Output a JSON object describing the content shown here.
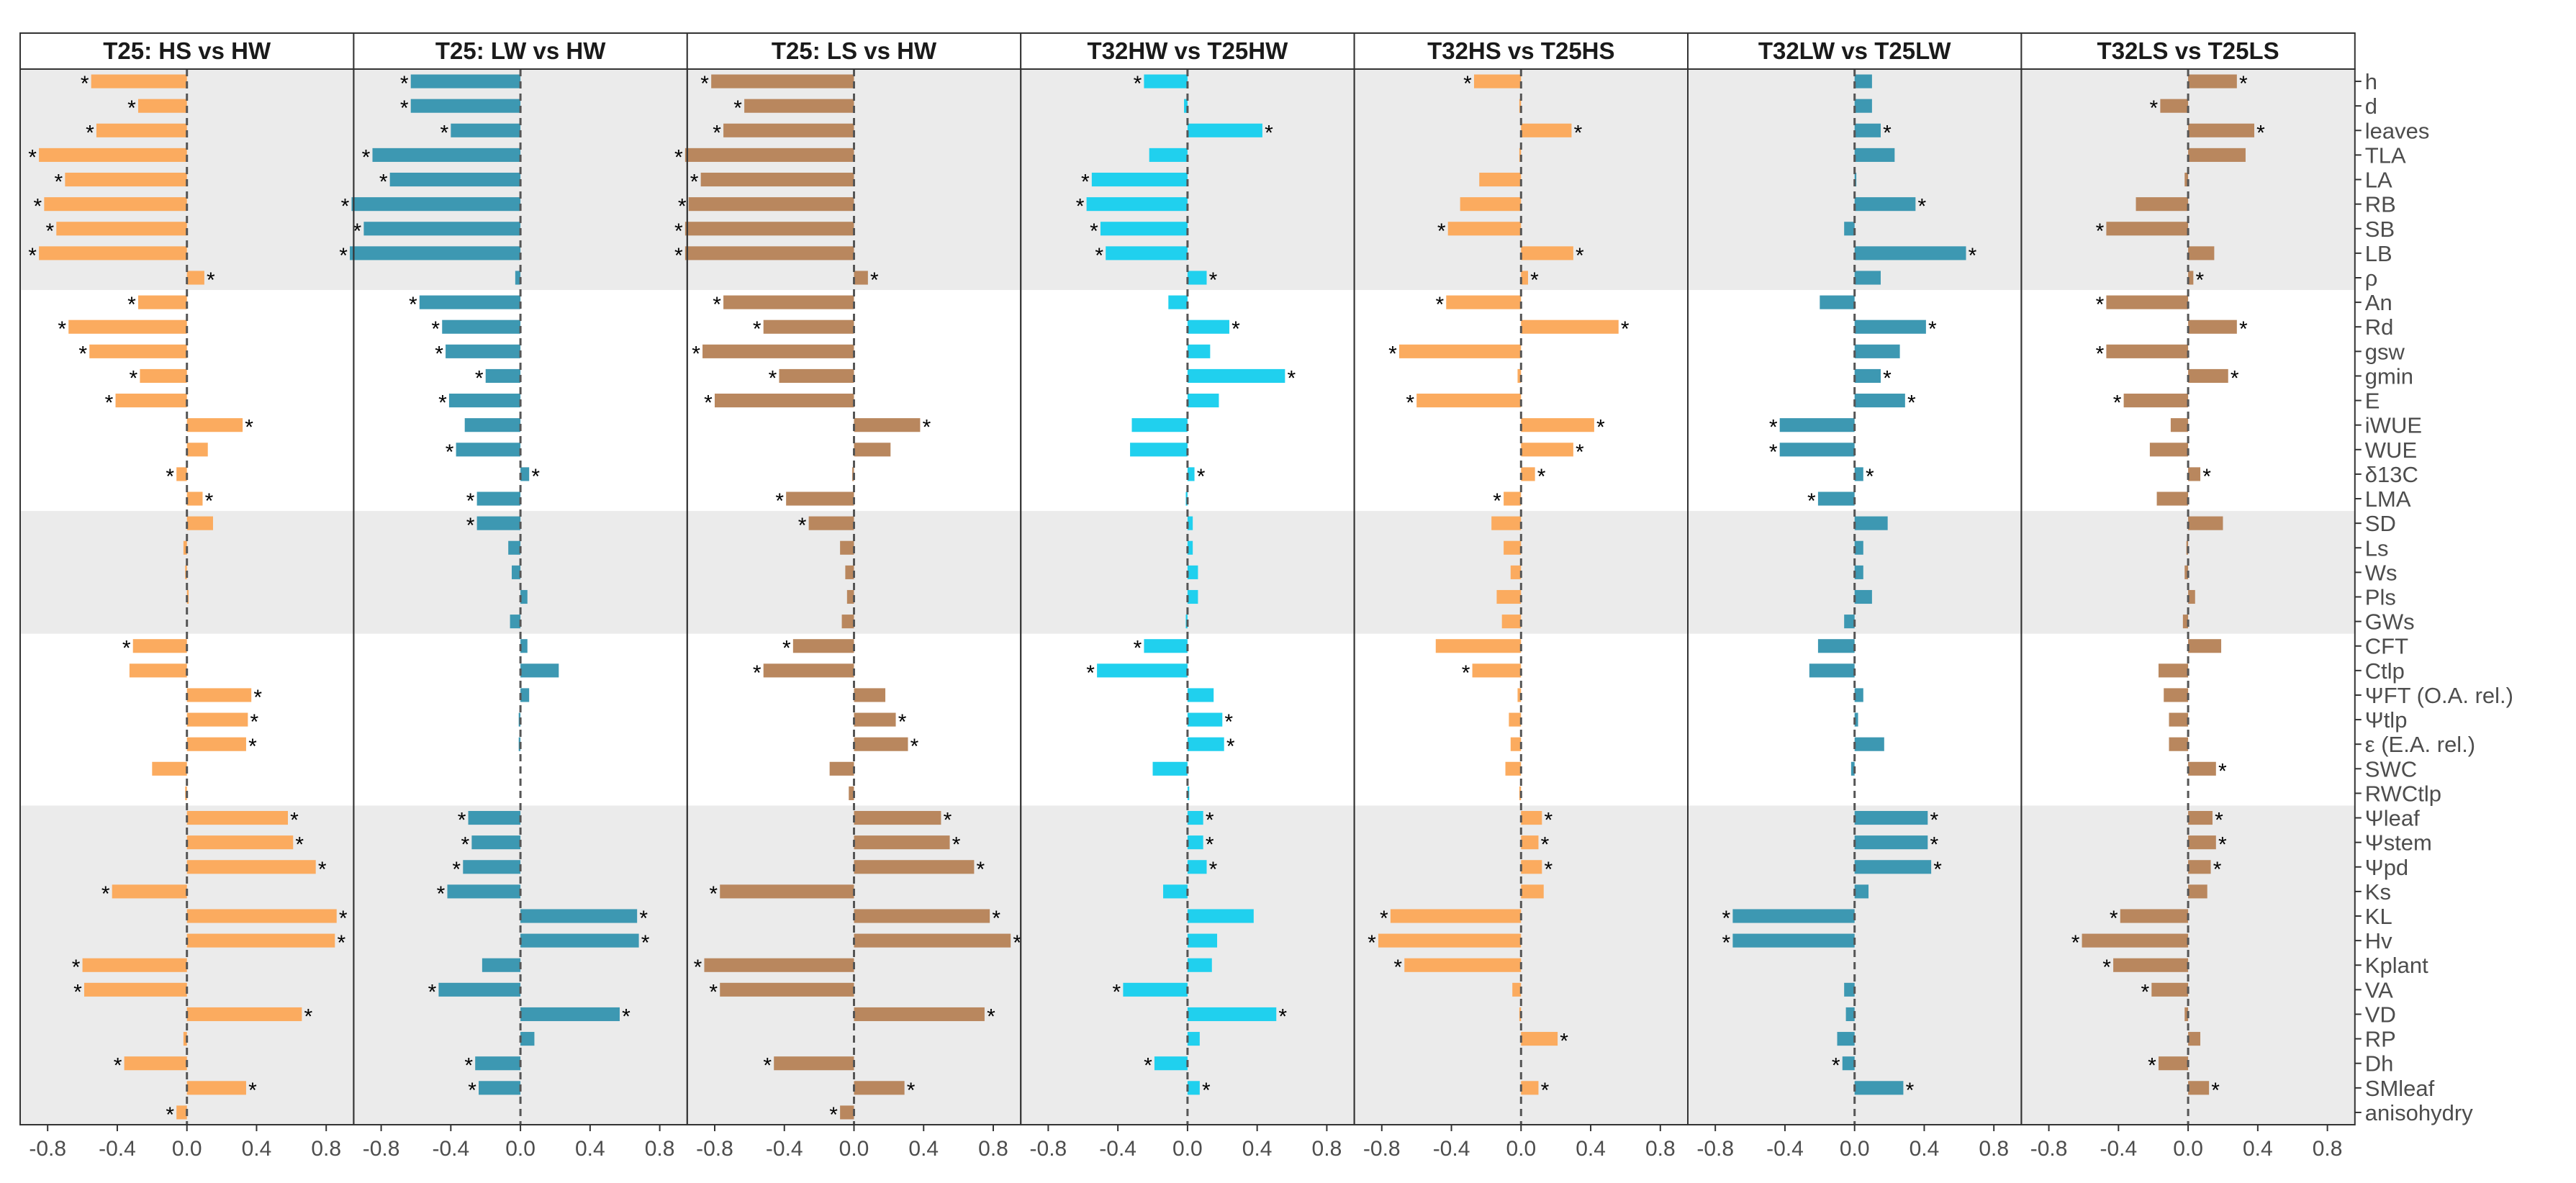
{
  "chart_data": {
    "type": "bar",
    "orientation": "horizontal",
    "facet_titles": [
      "T25: HS vs HW",
      "T25: LW vs HW",
      "T25: LS vs HW",
      "T32HW vs T25HW",
      "T32HS vs T25HS",
      "T32LW vs T25LW",
      "T32LS vs T25LS"
    ],
    "panel_colors": [
      "#fbab5f",
      "#3d98b2",
      "#b9875e",
      "#20d0ee",
      "#fbab5f",
      "#3d98b2",
      "#b9875e"
    ],
    "categories": [
      "h",
      "d",
      "leaves",
      "TLA",
      "LA",
      "RB",
      "SB",
      "LB",
      "ρ",
      "An",
      "Rd",
      "gsw",
      "gmin",
      "E",
      "iWUE",
      "WUE",
      "δ13C",
      "LMA",
      "SD",
      "Ls",
      "Ws",
      "Pls",
      "GWs",
      "CFT",
      "Ctlp",
      "ΨFT (O.A. rel.)",
      "Ψtlp",
      "ε (E.A. rel.)",
      "SWC",
      "RWCtlp",
      "Ψleaf",
      "Ψstem",
      "Ψpd",
      "Ks",
      "KL",
      "Hv",
      "Kplant",
      "VA",
      "VD",
      "RP",
      "Dh",
      "SMleaf",
      "anisohydry"
    ],
    "xlim": [
      -0.9,
      0.9
    ],
    "xticks": [
      -0.8,
      -0.4,
      0.0,
      0.4,
      0.8
    ],
    "xtick_labels": [
      "-0.8",
      "-0.4",
      "0.0",
      "0.4",
      "0.8"
    ],
    "shaded_bands": [
      [
        0,
        8
      ],
      [
        18,
        22
      ],
      [
        30,
        42
      ]
    ],
    "significance_marker": "*",
    "series": [
      {
        "name": "T25: HS vs HW",
        "values": [
          -0.55,
          -0.28,
          -0.52,
          -0.85,
          -0.7,
          -0.82,
          -0.75,
          -0.85,
          0.1,
          -0.28,
          -0.68,
          -0.56,
          -0.27,
          -0.41,
          0.32,
          0.12,
          -0.06,
          0.09,
          0.15,
          -0.02,
          -0.01,
          0.01,
          0.0,
          -0.31,
          -0.33,
          0.37,
          0.35,
          0.34,
          -0.2,
          -0.01,
          0.58,
          0.61,
          0.74,
          -0.43,
          0.86,
          0.85,
          -0.6,
          -0.59,
          0.66,
          -0.02,
          -0.36,
          0.34,
          -0.06
        ],
        "significant": [
          true,
          true,
          true,
          true,
          true,
          true,
          true,
          true,
          true,
          true,
          true,
          true,
          true,
          true,
          true,
          false,
          true,
          true,
          false,
          false,
          false,
          false,
          false,
          true,
          false,
          true,
          true,
          true,
          false,
          false,
          true,
          true,
          true,
          true,
          true,
          true,
          true,
          true,
          true,
          false,
          true,
          true,
          true
        ]
      },
      {
        "name": "T25: LW vs HW",
        "values": [
          -0.63,
          -0.63,
          -0.4,
          -0.85,
          -0.75,
          -0.97,
          -0.9,
          -0.98,
          -0.03,
          -0.58,
          -0.45,
          -0.43,
          -0.2,
          -0.41,
          -0.32,
          -0.37,
          0.05,
          -0.25,
          -0.25,
          -0.07,
          -0.05,
          0.04,
          -0.06,
          0.04,
          0.22,
          0.05,
          -0.01,
          -0.01,
          0.0,
          0.0,
          -0.3,
          -0.28,
          -0.33,
          -0.42,
          0.67,
          0.68,
          -0.22,
          -0.47,
          0.57,
          0.08,
          -0.26,
          -0.24,
          0.0
        ],
        "significant": [
          true,
          true,
          true,
          true,
          true,
          true,
          true,
          true,
          false,
          true,
          true,
          true,
          true,
          true,
          false,
          true,
          true,
          true,
          true,
          false,
          false,
          false,
          false,
          false,
          false,
          false,
          false,
          false,
          false,
          false,
          true,
          true,
          true,
          true,
          true,
          true,
          false,
          true,
          true,
          false,
          true,
          true,
          false
        ]
      },
      {
        "name": "T25: LS vs HW",
        "values": [
          -0.82,
          -0.63,
          -0.75,
          -0.97,
          -0.88,
          -0.95,
          -0.97,
          -0.97,
          0.08,
          -0.75,
          -0.52,
          -0.87,
          -0.43,
          -0.8,
          0.38,
          0.21,
          -0.01,
          -0.39,
          -0.26,
          -0.08,
          -0.05,
          -0.04,
          -0.07,
          -0.35,
          -0.52,
          0.18,
          0.24,
          0.31,
          -0.14,
          -0.03,
          0.5,
          0.55,
          0.69,
          -0.77,
          0.78,
          0.9,
          -0.86,
          -0.77,
          0.75,
          0.0,
          -0.46,
          0.29,
          -0.08
        ],
        "significant": [
          true,
          true,
          true,
          true,
          true,
          true,
          true,
          true,
          true,
          true,
          true,
          true,
          true,
          true,
          true,
          false,
          false,
          true,
          true,
          false,
          false,
          false,
          false,
          true,
          true,
          false,
          true,
          true,
          false,
          false,
          true,
          true,
          true,
          true,
          true,
          true,
          true,
          true,
          true,
          false,
          true,
          true,
          true
        ]
      },
      {
        "name": "T32HW vs T25HW",
        "values": [
          -0.25,
          -0.02,
          0.43,
          -0.22,
          -0.55,
          -0.58,
          -0.5,
          -0.47,
          0.11,
          -0.11,
          0.24,
          0.13,
          0.56,
          0.18,
          -0.32,
          -0.33,
          0.04,
          -0.01,
          0.03,
          0.03,
          0.06,
          0.06,
          -0.01,
          -0.25,
          -0.52,
          0.15,
          0.2,
          0.21,
          -0.2,
          0.01,
          0.09,
          0.09,
          0.11,
          -0.14,
          0.38,
          0.17,
          0.14,
          -0.37,
          0.51,
          0.07,
          -0.19,
          0.07,
          0.0
        ],
        "significant": [
          true,
          false,
          true,
          false,
          true,
          true,
          true,
          true,
          true,
          false,
          true,
          false,
          true,
          false,
          false,
          false,
          true,
          false,
          false,
          false,
          false,
          false,
          false,
          true,
          true,
          false,
          true,
          true,
          false,
          false,
          true,
          true,
          true,
          false,
          false,
          false,
          false,
          true,
          true,
          false,
          true,
          true,
          false
        ]
      },
      {
        "name": "T32HS vs T25HS",
        "values": [
          -0.27,
          -0.01,
          0.29,
          -0.01,
          -0.24,
          -0.35,
          -0.42,
          0.3,
          0.04,
          -0.43,
          0.56,
          -0.7,
          -0.02,
          -0.6,
          0.42,
          0.3,
          0.08,
          -0.1,
          -0.17,
          -0.1,
          -0.06,
          -0.14,
          -0.11,
          -0.49,
          -0.28,
          -0.02,
          -0.07,
          -0.06,
          -0.09,
          -0.01,
          0.12,
          0.1,
          0.12,
          0.13,
          -0.75,
          -0.82,
          -0.67,
          -0.05,
          -0.01,
          0.21,
          0.0,
          0.1,
          0.0
        ],
        "significant": [
          true,
          false,
          true,
          false,
          false,
          false,
          true,
          true,
          true,
          true,
          true,
          true,
          false,
          true,
          true,
          true,
          true,
          true,
          false,
          false,
          false,
          false,
          false,
          false,
          true,
          false,
          false,
          false,
          false,
          false,
          true,
          true,
          true,
          false,
          true,
          true,
          true,
          false,
          false,
          true,
          false,
          true,
          false
        ]
      },
      {
        "name": "T32LW vs T25LW",
        "values": [
          0.1,
          0.1,
          0.15,
          0.23,
          0.01,
          0.35,
          -0.06,
          0.64,
          0.15,
          -0.2,
          0.41,
          0.26,
          0.15,
          0.29,
          -0.43,
          -0.43,
          0.05,
          -0.21,
          0.19,
          0.05,
          0.05,
          0.1,
          -0.06,
          -0.21,
          -0.26,
          0.05,
          0.02,
          0.17,
          -0.02,
          0.0,
          0.42,
          0.42,
          0.44,
          0.08,
          -0.7,
          -0.7,
          0.0,
          -0.06,
          -0.05,
          -0.1,
          -0.07,
          0.28,
          0.0
        ],
        "significant": [
          false,
          false,
          true,
          false,
          false,
          true,
          false,
          true,
          false,
          false,
          true,
          false,
          true,
          true,
          true,
          true,
          true,
          true,
          false,
          false,
          false,
          false,
          false,
          false,
          false,
          false,
          false,
          false,
          false,
          false,
          true,
          true,
          true,
          false,
          true,
          true,
          false,
          false,
          false,
          false,
          true,
          true,
          false
        ]
      },
      {
        "name": "T32LS vs T25LS",
        "values": [
          0.28,
          -0.16,
          0.38,
          0.33,
          -0.02,
          -0.3,
          -0.47,
          0.15,
          0.03,
          -0.47,
          0.28,
          -0.47,
          0.23,
          -0.37,
          -0.1,
          -0.22,
          0.07,
          -0.18,
          0.2,
          -0.01,
          -0.02,
          0.04,
          -0.03,
          0.19,
          -0.17,
          -0.14,
          -0.11,
          -0.11,
          0.16,
          0.0,
          0.14,
          0.16,
          0.13,
          0.11,
          -0.39,
          -0.61,
          -0.43,
          -0.21,
          -0.02,
          0.07,
          -0.17,
          0.12,
          0.0
        ],
        "significant": [
          true,
          true,
          true,
          false,
          false,
          false,
          true,
          false,
          true,
          true,
          true,
          true,
          true,
          true,
          false,
          false,
          true,
          false,
          false,
          false,
          false,
          false,
          false,
          false,
          false,
          false,
          false,
          false,
          true,
          false,
          true,
          true,
          true,
          false,
          true,
          true,
          true,
          true,
          false,
          false,
          true,
          true,
          false
        ]
      }
    ]
  }
}
